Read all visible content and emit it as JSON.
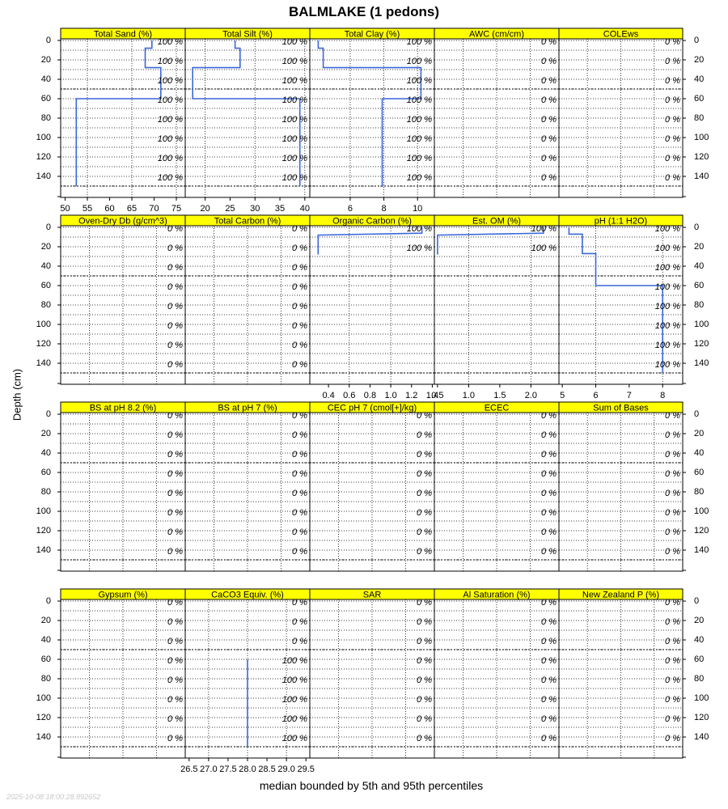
{
  "title": "BALMLAKE (1 pedons)",
  "ylabel": "Depth (cm)",
  "xlabel": "median bounded by 5th and 95th percentiles",
  "timestamp": "2025-10-08 18:00:28.892652",
  "colors": {
    "strip": "#ffff00",
    "line": "#3a67d9",
    "grid": "#000000"
  },
  "chart_data": {
    "type": "line",
    "y_axis": {
      "label": "Depth (cm)",
      "ticks": [
        0,
        20,
        40,
        60,
        80,
        100,
        120,
        140
      ],
      "ylim": [
        0,
        160
      ],
      "reversed": true
    },
    "depth_grid": [
      0,
      10,
      20,
      30,
      40,
      50,
      60,
      70,
      80,
      90,
      100,
      110,
      120,
      130,
      140,
      150
    ],
    "horizon_boundaries": [
      50,
      150
    ],
    "pct_labels_depths": [
      0,
      20,
      40,
      60,
      80,
      100,
      120,
      140
    ],
    "panels": [
      {
        "name": "Total Sand (%)",
        "row": 0,
        "col": 0,
        "xlim": [
          49,
          77
        ],
        "ticks": [
          "50",
          "55",
          "60",
          "65",
          "70",
          "75"
        ],
        "tick_values": [
          50,
          55,
          60,
          65,
          70,
          75
        ],
        "pct": "100 %",
        "grid_v": [
          55,
          65,
          75
        ],
        "x": [
          69.5,
          69.5,
          68,
          68,
          71.5,
          71.5,
          52.5,
          52.5
        ],
        "depth": [
          0,
          8,
          8,
          28,
          28,
          60,
          60,
          150
        ]
      },
      {
        "name": "Total Silt (%)",
        "row": 0,
        "col": 1,
        "xlim": [
          16,
          41
        ],
        "ticks": [
          "20",
          "25",
          "30",
          "35",
          "40"
        ],
        "tick_values": [
          20,
          25,
          30,
          35,
          40
        ],
        "pct": "100 %",
        "grid_v": [
          20,
          30,
          40
        ],
        "x": [
          26,
          26,
          27,
          27,
          17.5,
          17.5,
          39,
          39
        ],
        "depth": [
          0,
          8,
          8,
          28,
          28,
          60,
          60,
          150
        ]
      },
      {
        "name": "Total Clay (%)",
        "row": 0,
        "col": 2,
        "xlim": [
          3.6,
          11
        ],
        "ticks": [
          "6",
          "8",
          "10"
        ],
        "tick_values": [
          6,
          8,
          10
        ],
        "pct": "100 %",
        "grid_v": [
          6,
          8,
          10
        ],
        "x": [
          4.1,
          4.1,
          4.4,
          4.4,
          10.2,
          10.2,
          7.9,
          7.9
        ],
        "depth": [
          0,
          8,
          8,
          28,
          28,
          60,
          60,
          150
        ]
      },
      {
        "name": "AWC (cm/cm)",
        "row": 0,
        "col": 3,
        "xlim": [
          0,
          1
        ],
        "ticks": [],
        "tick_values": [],
        "pct": "0 %",
        "grid_v": [
          0.23,
          0.5,
          0.77
        ],
        "x": [],
        "depth": []
      },
      {
        "name": "COLEws",
        "row": 0,
        "col": 4,
        "xlim": [
          0,
          1
        ],
        "ticks": [],
        "tick_values": [],
        "pct": "0 %",
        "grid_v": [
          0.23,
          0.5,
          0.77
        ],
        "x": [],
        "depth": []
      },
      {
        "name": "Oven-Dry Db (g/cm^3)",
        "row": 1,
        "col": 0,
        "xlim": [
          0,
          1
        ],
        "ticks": [],
        "tick_values": [],
        "pct": "0 %",
        "grid_v": [
          0.23,
          0.5,
          0.77
        ],
        "x": [],
        "depth": []
      },
      {
        "name": "Total Carbon (%)",
        "row": 1,
        "col": 1,
        "xlim": [
          0,
          1
        ],
        "ticks": [],
        "tick_values": [],
        "pct": "0 %",
        "grid_v": [
          0.23,
          0.5,
          0.77
        ],
        "x": [],
        "depth": []
      },
      {
        "name": "Organic Carbon (%)",
        "row": 1,
        "col": 2,
        "xlim": [
          0.22,
          1.42
        ],
        "ticks": [
          "0.4",
          "0.6",
          "0.8",
          "1.0",
          "1.2",
          "1.4"
        ],
        "tick_values": [
          0.4,
          0.6,
          0.8,
          1.0,
          1.2,
          1.4
        ],
        "pct": "100 %",
        "pct_depths": [
          0,
          20
        ],
        "grid_v": [
          0.6,
          1.0
        ],
        "x": [
          0.3,
          0.3,
          1.3,
          1.3
        ],
        "depth": [
          28,
          8,
          6,
          0
        ]
      },
      {
        "name": "Est. OM (%)",
        "row": 1,
        "col": 3,
        "xlim": [
          0.45,
          2.45
        ],
        "ticks": [
          "0.5",
          "1.0",
          "1.5",
          "2.0"
        ],
        "tick_values": [
          0.5,
          1.0,
          1.5,
          2.0
        ],
        "pct": "100 %",
        "pct_depths": [
          0,
          20
        ],
        "grid_v": [
          1.0,
          2.0
        ],
        "x": [
          0.5,
          0.5,
          2.2,
          2.2
        ],
        "depth": [
          28,
          8,
          6,
          0
        ]
      },
      {
        "name": "pH (1:1 H2O)",
        "row": 1,
        "col": 4,
        "xlim": [
          4.9,
          8.6
        ],
        "ticks": [
          "5",
          "6",
          "7",
          "8"
        ],
        "tick_values": [
          5,
          6,
          7,
          8
        ],
        "pct": "100 %",
        "grid_v": [
          6,
          8
        ],
        "x": [
          5.2,
          5.2,
          5.6,
          5.6,
          6.0,
          6.0,
          8.0,
          8.0
        ],
        "depth": [
          0,
          7,
          7,
          27,
          27,
          60,
          60,
          150
        ]
      },
      {
        "name": "BS at pH 8.2 (%)",
        "row": 2,
        "col": 0,
        "xlim": [
          0,
          1
        ],
        "ticks": [],
        "tick_values": [],
        "pct": "0 %",
        "grid_v": [
          0.23,
          0.5,
          0.77
        ],
        "x": [],
        "depth": []
      },
      {
        "name": "BS at pH 7 (%)",
        "row": 2,
        "col": 1,
        "xlim": [
          0,
          1
        ],
        "ticks": [],
        "tick_values": [],
        "pct": "0 %",
        "grid_v": [
          0.23,
          0.5,
          0.77
        ],
        "x": [],
        "depth": []
      },
      {
        "name": "CEC pH 7 (cmol[+]/kg)",
        "row": 2,
        "col": 2,
        "xlim": [
          0,
          1
        ],
        "ticks": [],
        "tick_values": [],
        "pct": "0 %",
        "grid_v": [
          0.23,
          0.5,
          0.77
        ],
        "x": [],
        "depth": []
      },
      {
        "name": "ECEC",
        "row": 2,
        "col": 3,
        "xlim": [
          0,
          1
        ],
        "ticks": [],
        "tick_values": [],
        "pct": "0 %",
        "grid_v": [
          0.23,
          0.5,
          0.77
        ],
        "x": [],
        "depth": []
      },
      {
        "name": "Sum of Bases",
        "row": 2,
        "col": 4,
        "xlim": [
          0,
          1
        ],
        "ticks": [],
        "tick_values": [],
        "pct": "0 %",
        "grid_v": [
          0.23,
          0.5,
          0.77
        ],
        "x": [],
        "depth": []
      },
      {
        "name": "Gypsum (%)",
        "row": 3,
        "col": 0,
        "xlim": [
          0,
          1
        ],
        "ticks": [],
        "tick_values": [],
        "pct": "0 %",
        "grid_v": [
          0.23,
          0.5,
          0.77
        ],
        "x": [],
        "depth": []
      },
      {
        "name": "CaCO3 Equiv. (%)",
        "row": 3,
        "col": 1,
        "xlim": [
          26.4,
          29.6
        ],
        "ticks": [
          "26.5",
          "27.0",
          "27.5",
          "28.0",
          "28.5",
          "29.0",
          "29.5"
        ],
        "tick_values": [
          26.5,
          27.0,
          27.5,
          28.0,
          28.5,
          29.0,
          29.5
        ],
        "pct": "100 %",
        "pct_depths": [
          60,
          80,
          100,
          120,
          140
        ],
        "pct_zero": "0 %",
        "grid_v": [
          27.0,
          28.0,
          29.0
        ],
        "x": [
          28.0,
          28.0
        ],
        "depth": [
          60,
          150
        ]
      },
      {
        "name": "SAR",
        "row": 3,
        "col": 2,
        "xlim": [
          0,
          1
        ],
        "ticks": [],
        "tick_values": [],
        "pct": "0 %",
        "grid_v": [
          0.23,
          0.5,
          0.77
        ],
        "x": [],
        "depth": []
      },
      {
        "name": "Al Saturation (%)",
        "row": 3,
        "col": 3,
        "xlim": [
          0,
          1
        ],
        "ticks": [],
        "tick_values": [],
        "pct": "0 %",
        "grid_v": [
          0.23,
          0.5,
          0.77
        ],
        "x": [],
        "depth": []
      },
      {
        "name": "New Zealand P (%)",
        "row": 3,
        "col": 4,
        "xlim": [
          0,
          1
        ],
        "ticks": [],
        "tick_values": [],
        "pct": "0 %",
        "grid_v": [
          0.23,
          0.5,
          0.77
        ],
        "x": [],
        "depth": []
      }
    ]
  }
}
